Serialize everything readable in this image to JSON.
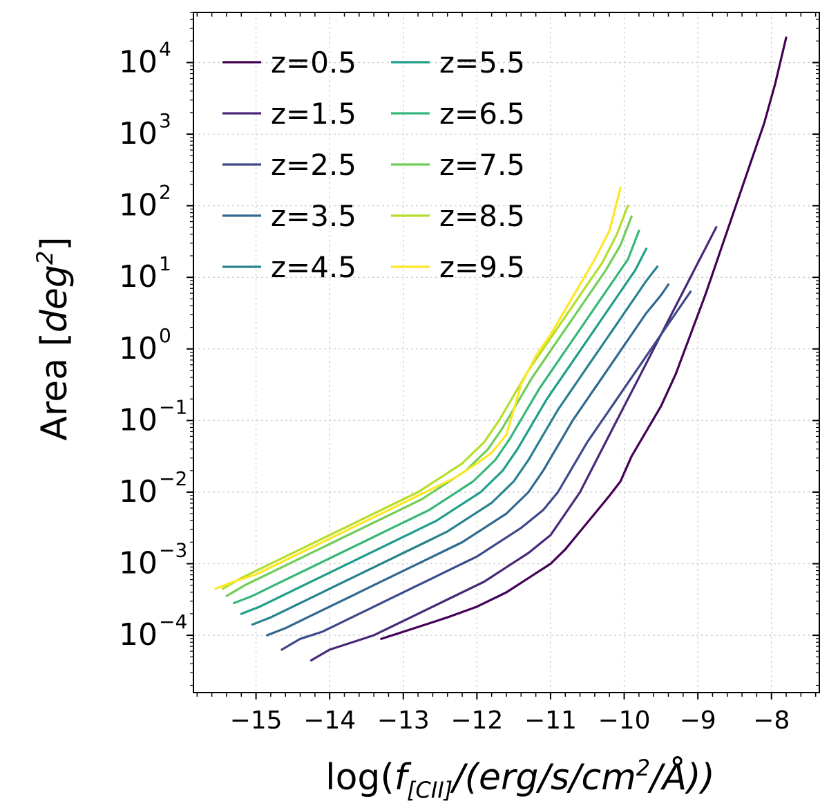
{
  "chart_data": {
    "type": "line",
    "title": "",
    "xlabel": "log(f[CII]/(erg/s/cm²/Å))",
    "xlabel_parts": {
      "prefix": "log(",
      "f": "f",
      "sub": "[CII]",
      "mid": "/(erg/s/cm",
      "sup": "2",
      "end": "/Å))"
    },
    "ylabel": "Area [deg²]",
    "ylabel_parts": {
      "prefix": "Area [",
      "unit": "deg",
      "sup": "2",
      "end": "]"
    },
    "xlim": [
      -15.85,
      -7.35
    ],
    "ylim_log10": [
      -4.8,
      4.7
    ],
    "y_scale": "log",
    "x_ticks": [
      -15,
      -14,
      -13,
      -12,
      -11,
      -10,
      -9,
      -8
    ],
    "x_tick_labels": [
      "−15",
      "−14",
      "−13",
      "−12",
      "−11",
      "−10",
      "−9",
      "−8"
    ],
    "y_ticks_log10": [
      -4,
      -3,
      -2,
      -1,
      0,
      1,
      2,
      3,
      4
    ],
    "y_tick_labels": [
      "10",
      "10",
      "10",
      "10",
      "10",
      "10",
      "10",
      "10",
      "10"
    ],
    "y_tick_exponents": [
      "−4",
      "−3",
      "−2",
      "−1",
      "0",
      "1",
      "2",
      "3",
      "4"
    ],
    "grid": true,
    "legend_position": "top-left",
    "series": [
      {
        "name": "z=0.5",
        "color": "#440154",
        "x": [
          -13.3,
          -13.0,
          -12.7,
          -12.4,
          -12.0,
          -11.6,
          -11.3,
          -11.0,
          -10.8,
          -10.6,
          -10.4,
          -10.2,
          -10.05,
          -9.9,
          -9.7,
          -9.5,
          -9.3,
          -9.1,
          -8.9,
          -8.7,
          -8.5,
          -8.3,
          -8.1,
          -7.95,
          -7.8
        ],
        "y": [
          -4.05,
          -3.95,
          -3.85,
          -3.75,
          -3.6,
          -3.4,
          -3.2,
          -3.0,
          -2.8,
          -2.55,
          -2.3,
          -2.05,
          -1.85,
          -1.5,
          -1.15,
          -0.8,
          -0.35,
          0.2,
          0.75,
          1.35,
          1.95,
          2.55,
          3.15,
          3.7,
          4.35
        ]
      },
      {
        "name": "z=1.5",
        "color": "#482878",
        "x": [
          -14.25,
          -14.0,
          -13.7,
          -13.4,
          -13.1,
          -12.8,
          -12.5,
          -12.2,
          -11.9,
          -11.6,
          -11.3,
          -11.0,
          -10.8,
          -10.6,
          -10.4,
          -10.2,
          -10.0,
          -9.8,
          -9.6,
          -9.4,
          -9.2,
          -9.0,
          -8.9,
          -8.75
        ],
        "y": [
          -4.35,
          -4.2,
          -4.1,
          -4.0,
          -3.85,
          -3.7,
          -3.55,
          -3.4,
          -3.25,
          -3.05,
          -2.85,
          -2.6,
          -2.3,
          -2.0,
          -1.6,
          -1.2,
          -0.8,
          -0.4,
          0.0,
          0.4,
          0.8,
          1.2,
          1.4,
          1.7
        ]
      },
      {
        "name": "z=2.5",
        "color": "#3e4989",
        "x": [
          -14.65,
          -14.4,
          -14.1,
          -13.8,
          -13.5,
          -13.2,
          -12.9,
          -12.6,
          -12.3,
          -12.0,
          -11.7,
          -11.4,
          -11.1,
          -10.9,
          -10.7,
          -10.5,
          -10.3,
          -10.1,
          -9.9,
          -9.7,
          -9.5,
          -9.3,
          -9.1
        ],
        "y": [
          -4.2,
          -4.05,
          -3.95,
          -3.8,
          -3.65,
          -3.5,
          -3.35,
          -3.2,
          -3.05,
          -2.9,
          -2.7,
          -2.5,
          -2.25,
          -2.0,
          -1.65,
          -1.3,
          -1.0,
          -0.7,
          -0.4,
          -0.1,
          0.2,
          0.5,
          0.8
        ]
      },
      {
        "name": "z=3.5",
        "color": "#31688e",
        "x": [
          -14.85,
          -14.6,
          -14.3,
          -14.0,
          -13.7,
          -13.4,
          -13.1,
          -12.8,
          -12.5,
          -12.2,
          -11.9,
          -11.6,
          -11.3,
          -11.1,
          -10.9,
          -10.7,
          -10.5,
          -10.3,
          -10.1,
          -9.9,
          -9.7,
          -9.5,
          -9.4
        ],
        "y": [
          -4.0,
          -3.9,
          -3.75,
          -3.6,
          -3.45,
          -3.3,
          -3.15,
          -3.0,
          -2.85,
          -2.7,
          -2.5,
          -2.3,
          -2.0,
          -1.7,
          -1.35,
          -1.0,
          -0.7,
          -0.4,
          -0.1,
          0.2,
          0.5,
          0.75,
          0.9
        ]
      },
      {
        "name": "z=4.5",
        "color": "#26828e",
        "x": [
          -15.05,
          -14.8,
          -14.5,
          -14.2,
          -13.9,
          -13.6,
          -13.3,
          -13.0,
          -12.7,
          -12.4,
          -12.1,
          -11.8,
          -11.5,
          -11.3,
          -11.1,
          -10.9,
          -10.7,
          -10.5,
          -10.3,
          -10.1,
          -9.9,
          -9.7,
          -9.55
        ],
        "y": [
          -3.85,
          -3.75,
          -3.6,
          -3.45,
          -3.3,
          -3.15,
          -3.0,
          -2.85,
          -2.7,
          -2.55,
          -2.35,
          -2.15,
          -1.85,
          -1.55,
          -1.2,
          -0.85,
          -0.55,
          -0.25,
          0.05,
          0.35,
          0.65,
          0.95,
          1.15
        ]
      },
      {
        "name": "z=5.5",
        "color": "#1f9e89",
        "x": [
          -15.2,
          -14.95,
          -14.65,
          -14.35,
          -14.05,
          -13.75,
          -13.45,
          -13.15,
          -12.85,
          -12.55,
          -12.25,
          -11.95,
          -11.65,
          -11.45,
          -11.25,
          -11.05,
          -10.85,
          -10.65,
          -10.45,
          -10.25,
          -10.05,
          -9.85,
          -9.7
        ],
        "y": [
          -3.7,
          -3.6,
          -3.45,
          -3.3,
          -3.15,
          -3.0,
          -2.85,
          -2.7,
          -2.55,
          -2.4,
          -2.2,
          -2.0,
          -1.7,
          -1.4,
          -1.05,
          -0.7,
          -0.4,
          -0.1,
          0.2,
          0.5,
          0.8,
          1.1,
          1.4
        ]
      },
      {
        "name": "z=6.5",
        "color": "#35b779",
        "x": [
          -15.3,
          -15.05,
          -14.75,
          -14.45,
          -14.15,
          -13.85,
          -13.55,
          -13.25,
          -12.95,
          -12.65,
          -12.35,
          -12.05,
          -11.75,
          -11.55,
          -11.35,
          -11.15,
          -10.95,
          -10.75,
          -10.55,
          -10.35,
          -10.15,
          -9.95,
          -9.8
        ],
        "y": [
          -3.55,
          -3.45,
          -3.3,
          -3.15,
          -3.0,
          -2.85,
          -2.7,
          -2.55,
          -2.4,
          -2.25,
          -2.05,
          -1.85,
          -1.55,
          -1.25,
          -0.9,
          -0.55,
          -0.25,
          0.05,
          0.35,
          0.65,
          0.95,
          1.25,
          1.65
        ]
      },
      {
        "name": "z=7.5",
        "color": "#6ece58",
        "x": [
          -15.4,
          -15.15,
          -14.85,
          -14.55,
          -14.25,
          -13.95,
          -13.65,
          -13.35,
          -13.05,
          -12.75,
          -12.45,
          -12.15,
          -11.85,
          -11.65,
          -11.45,
          -11.25,
          -11.05,
          -10.85,
          -10.65,
          -10.45,
          -10.25,
          -10.05,
          -9.9
        ],
        "y": [
          -3.45,
          -3.3,
          -3.15,
          -3.0,
          -2.85,
          -2.7,
          -2.55,
          -2.4,
          -2.25,
          -2.1,
          -1.9,
          -1.7,
          -1.4,
          -1.1,
          -0.75,
          -0.4,
          -0.1,
          0.2,
          0.5,
          0.8,
          1.1,
          1.45,
          1.85
        ]
      },
      {
        "name": "z=8.5",
        "color": "#b5de2b",
        "x": [
          -15.45,
          -15.2,
          -14.9,
          -14.6,
          -14.3,
          -14.0,
          -13.7,
          -13.4,
          -13.1,
          -12.8,
          -12.5,
          -12.2,
          -11.9,
          -11.7,
          -11.5,
          -11.3,
          -11.1,
          -10.9,
          -10.7,
          -10.5,
          -10.3,
          -10.1,
          -9.95
        ],
        "y": [
          -3.35,
          -3.2,
          -3.05,
          -2.9,
          -2.75,
          -2.6,
          -2.45,
          -2.3,
          -2.15,
          -2.0,
          -1.8,
          -1.6,
          -1.3,
          -1.0,
          -0.65,
          -0.3,
          0.0,
          0.3,
          0.6,
          0.9,
          1.2,
          1.6,
          2.0
        ]
      },
      {
        "name": "z=9.5",
        "color": "#fde725",
        "x": [
          -15.55,
          -15.3,
          -15.0,
          -14.7,
          -14.4,
          -14.1,
          -13.8,
          -13.5,
          -13.2,
          -12.9,
          -12.6,
          -12.3,
          -12.0,
          -11.8,
          -11.6,
          -11.4,
          -11.2,
          -11.0,
          -10.8,
          -10.6,
          -10.4,
          -10.2,
          -10.05
        ],
        "y": [
          -3.35,
          -3.25,
          -3.15,
          -3.0,
          -2.85,
          -2.7,
          -2.55,
          -2.4,
          -2.25,
          -2.1,
          -1.95,
          -1.8,
          -1.6,
          -1.45,
          -1.2,
          -0.5,
          -0.1,
          0.2,
          0.55,
          0.9,
          1.25,
          1.65,
          2.25
        ]
      }
    ]
  }
}
